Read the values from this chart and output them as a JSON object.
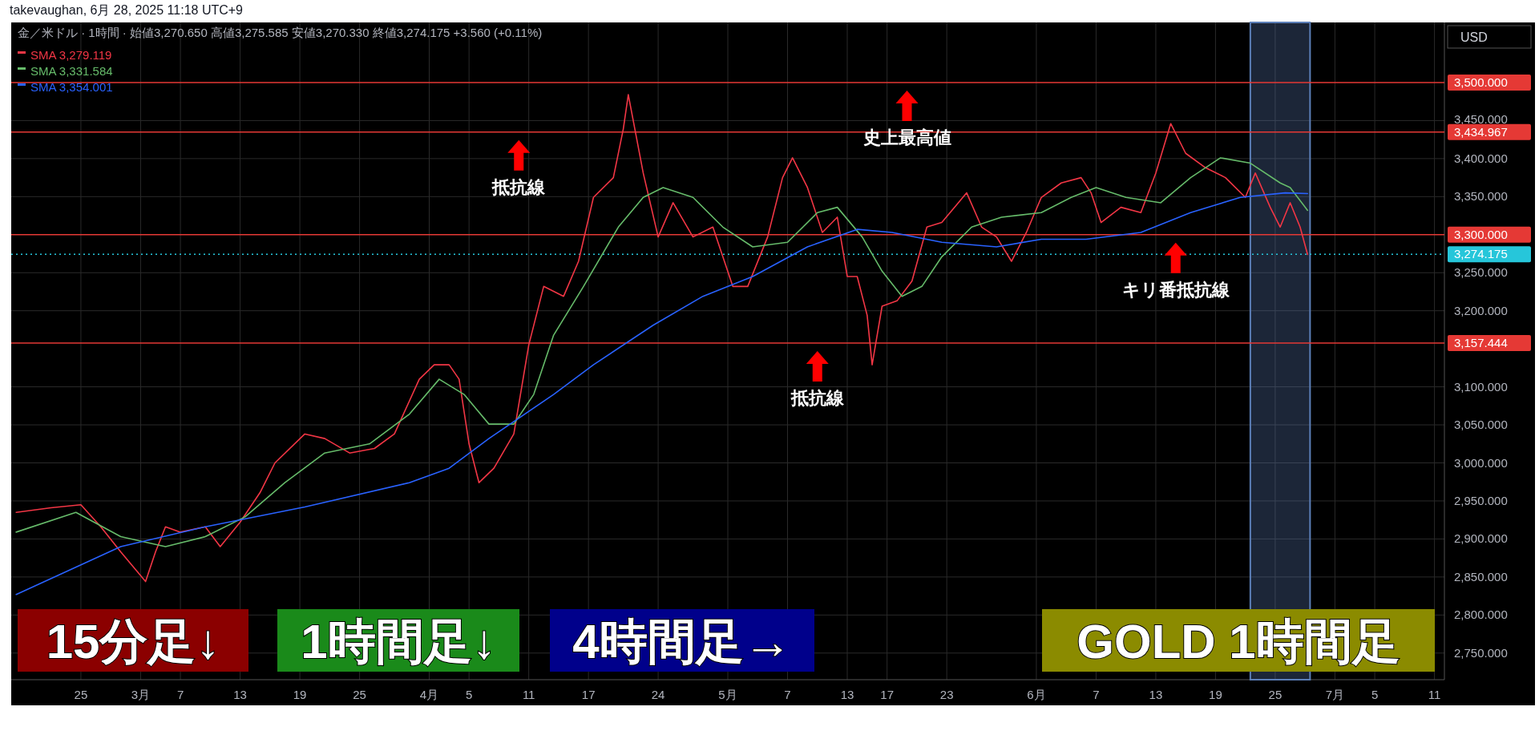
{
  "chart_data": {
    "type": "line",
    "title": "金／米ドル · 1時間 · 始値3,270.650 高値3,275.585 安値3,270.330 終値3,274.175 +3.560 (+0.11%)",
    "ylabel": "USD",
    "xlim": [
      "2025-02-18",
      "2025-07-12"
    ],
    "ylim": [
      2715,
      3579
    ],
    "xticks": [
      {
        "value": "2025-02-25",
        "label": "25"
      },
      {
        "value": "2025-03-03",
        "label": "3月"
      },
      {
        "value": "2025-03-07",
        "label": "7"
      },
      {
        "value": "2025-03-13",
        "label": "13"
      },
      {
        "value": "2025-03-19",
        "label": "19"
      },
      {
        "value": "2025-03-25",
        "label": "25"
      },
      {
        "value": "2025-04-01",
        "label": "4月"
      },
      {
        "value": "2025-04-05",
        "label": "5"
      },
      {
        "value": "2025-04-11",
        "label": "11"
      },
      {
        "value": "2025-04-17",
        "label": "17"
      },
      {
        "value": "2025-04-24",
        "label": "24"
      },
      {
        "value": "2025-05-01",
        "label": "5月"
      },
      {
        "value": "2025-05-07",
        "label": "7"
      },
      {
        "value": "2025-05-13",
        "label": "13"
      },
      {
        "value": "2025-05-17",
        "label": "17"
      },
      {
        "value": "2025-05-23",
        "label": "23"
      },
      {
        "value": "2025-06-01",
        "label": "6月"
      },
      {
        "value": "2025-06-07",
        "label": "7"
      },
      {
        "value": "2025-06-13",
        "label": "13"
      },
      {
        "value": "2025-06-19",
        "label": "19"
      },
      {
        "value": "2025-06-25",
        "label": "25"
      },
      {
        "value": "2025-07-01",
        "label": "7月"
      },
      {
        "value": "2025-07-05",
        "label": "5"
      },
      {
        "value": "2025-07-11",
        "label": "11"
      }
    ],
    "yticks": [
      {
        "value": 2750,
        "label": "2,750.000"
      },
      {
        "value": 2800,
        "label": "2,800.000"
      },
      {
        "value": 2850,
        "label": "2,850.000"
      },
      {
        "value": 2900,
        "label": "2,900.000"
      },
      {
        "value": 2950,
        "label": "2,950.000"
      },
      {
        "value": 3000,
        "label": "3,000.000"
      },
      {
        "value": 3050,
        "label": "3,050.000"
      },
      {
        "value": 3100,
        "label": "3,100.000"
      },
      {
        "value": 3200,
        "label": "3,200.000"
      },
      {
        "value": 3250,
        "label": "3,250.000"
      },
      {
        "value": 3350,
        "label": "3,350.000"
      },
      {
        "value": 3400,
        "label": "3,400.000"
      },
      {
        "value": 3450,
        "label": "3,450.000"
      }
    ],
    "grid": true,
    "legend": "top left",
    "series": [
      {
        "name": "SMA 3,279.119",
        "color": "#f23645",
        "x": [
          "2025-02-18T12:00",
          "2025-02-22",
          "2025-02-25",
          "2025-02-27",
          "2025-03-01",
          "2025-03-03T12:00",
          "2025-03-04T12:00",
          "2025-03-05T12:00",
          "2025-03-07",
          "2025-03-09T12:00",
          "2025-03-11",
          "2025-03-13",
          "2025-03-15",
          "2025-03-16T12:00",
          "2025-03-19T12:00",
          "2025-03-21T12:00",
          "2025-03-24",
          "2025-03-26T12:00",
          "2025-03-28T12:00",
          "2025-03-31",
          "2025-04-01T12:00",
          "2025-04-03",
          "2025-04-04",
          "2025-04-05",
          "2025-04-06",
          "2025-04-07T12:00",
          "2025-04-09T12:00",
          "2025-04-11",
          "2025-04-12T12:00",
          "2025-04-14T12:00",
          "2025-04-16",
          "2025-04-17T12:00",
          "2025-04-19T12:00",
          "2025-04-20T12:00",
          "2025-04-21",
          "2025-04-22T12:00",
          "2025-04-24",
          "2025-04-25T12:00",
          "2025-04-27T12:00",
          "2025-04-29T12:00",
          "2025-05-01T12:00",
          "2025-05-03",
          "2025-05-05",
          "2025-05-06T12:00",
          "2025-05-07T12:00",
          "2025-05-09",
          "2025-05-10T12:00",
          "2025-05-12",
          "2025-05-13",
          "2025-05-14",
          "2025-05-15",
          "2025-05-15T12:00",
          "2025-05-16T12:00",
          "2025-05-18",
          "2025-05-19T12:00",
          "2025-05-21",
          "2025-05-22T12:00",
          "2025-05-25",
          "2025-05-26T12:00",
          "2025-05-28",
          "2025-05-29T12:00",
          "2025-05-31",
          "2025-06-01T12:00",
          "2025-06-03T12:00",
          "2025-06-05T12:00",
          "2025-06-06T12:00",
          "2025-06-07T12:00",
          "2025-06-09T12:00",
          "2025-06-11T12:00",
          "2025-06-13",
          "2025-06-14T12:00",
          "2025-06-16",
          "2025-06-18",
          "2025-06-20",
          "2025-06-22",
          "2025-06-23",
          "2025-06-24T12:00",
          "2025-06-25T12:00",
          "2025-06-26T12:00",
          "2025-06-27T12:00",
          "2025-06-28T06:00"
        ],
        "values": [
          2935,
          2941,
          2945,
          2916,
          2883,
          2844,
          2883,
          2916,
          2909,
          2916,
          2890,
          2922,
          2961,
          3000,
          3038,
          3032,
          3013,
          3019,
          3038,
          3110,
          3129,
          3129,
          3110,
          3025,
          2974,
          2993,
          3038,
          3155,
          3232,
          3219,
          3265,
          3349,
          3375,
          3439,
          3484,
          3381,
          3297,
          3342,
          3297,
          3310,
          3232,
          3232,
          3297,
          3375,
          3401,
          3362,
          3303,
          3323,
          3245,
          3245,
          3194,
          3129,
          3206,
          3213,
          3239,
          3310,
          3316,
          3355,
          3310,
          3297,
          3265,
          3303,
          3349,
          3368,
          3375,
          3355,
          3316,
          3336,
          3329,
          3381,
          3446,
          3407,
          3388,
          3375,
          3349,
          3381,
          3336,
          3310,
          3342,
          3310,
          3274
        ]
      },
      {
        "name": "SMA 3,331.584",
        "color": "#66bb6a",
        "x": [
          "2025-02-18T12:00",
          "2025-02-24T12:00",
          "2025-03-01",
          "2025-03-05T12:00",
          "2025-03-09T12:00",
          "2025-03-13T12:00",
          "2025-03-17T12:00",
          "2025-03-21T12:00",
          "2025-03-26",
          "2025-03-30",
          "2025-04-02",
          "2025-04-04T12:00",
          "2025-04-07",
          "2025-04-09T12:00",
          "2025-04-11T12:00",
          "2025-04-13T12:00",
          "2025-04-16T12:00",
          "2025-04-20",
          "2025-04-22T12:00",
          "2025-04-24T12:00",
          "2025-04-27T12:00",
          "2025-04-30T12:00",
          "2025-05-03T12:00",
          "2025-05-07",
          "2025-05-10",
          "2025-05-12",
          "2025-05-14T12:00",
          "2025-05-16T12:00",
          "2025-05-18T12:00",
          "2025-05-20T12:00",
          "2025-05-22T12:00",
          "2025-05-25T12:00",
          "2025-05-28T12:00",
          "2025-06-01T12:00",
          "2025-06-04T12:00",
          "2025-06-07",
          "2025-06-10",
          "2025-06-13T12:00",
          "2025-06-16T12:00",
          "2025-06-19T12:00",
          "2025-06-22T12:00",
          "2025-06-25T12:00",
          "2025-06-26T12:00",
          "2025-06-28T06:00"
        ],
        "values": [
          2909,
          2935,
          2903,
          2890,
          2903,
          2929,
          2974,
          3013,
          3025,
          3064,
          3110,
          3090,
          3051,
          3051,
          3090,
          3168,
          3232,
          3310,
          3349,
          3362,
          3349,
          3310,
          3284,
          3290,
          3329,
          3336,
          3297,
          3252,
          3219,
          3232,
          3271,
          3310,
          3323,
          3329,
          3349,
          3362,
          3349,
          3342,
          3375,
          3401,
          3394,
          3368,
          3362,
          3332
        ]
      },
      {
        "name": "SMA 3,354.001",
        "color": "#2962ff",
        "x": [
          "2025-02-18T12:00",
          "2025-03-01",
          "2025-03-09T12:00",
          "2025-03-19T12:00",
          "2025-03-30",
          "2025-04-03",
          "2025-04-07",
          "2025-04-13T12:00",
          "2025-04-17T12:00",
          "2025-04-23T12:00",
          "2025-04-28T12:00",
          "2025-05-03T12:00",
          "2025-05-09",
          "2025-05-14",
          "2025-05-17T12:00",
          "2025-05-22T12:00",
          "2025-05-28",
          "2025-06-01T12:00",
          "2025-06-06",
          "2025-06-11T12:00",
          "2025-06-16T12:00",
          "2025-06-21T12:00",
          "2025-06-26",
          "2025-06-28T06:00"
        ],
        "values": [
          2827,
          2890,
          2916,
          2942,
          2974,
          2993,
          3032,
          3090,
          3129,
          3181,
          3219,
          3245,
          3284,
          3307,
          3303,
          3290,
          3284,
          3294,
          3294,
          3303,
          3329,
          3349,
          3355,
          3354
        ]
      }
    ],
    "ref_lines": [
      {
        "axis": "y",
        "value": 3500,
        "label": "3,500.000",
        "color": "#e53935",
        "line_style": "solid"
      },
      {
        "axis": "y",
        "value": 3434.967,
        "label": "3,434.967",
        "color": "#e53935",
        "line_style": "solid"
      },
      {
        "axis": "y",
        "value": 3300,
        "label": "3,300.000",
        "color": "#e53935",
        "line_style": "solid"
      },
      {
        "axis": "y",
        "value": 3157.444,
        "label": "3,157.444",
        "color": "#e53935",
        "line_style": "solid"
      },
      {
        "axis": "y",
        "value": 3274.175,
        "label": "3,274.175",
        "color": "#26c6da",
        "line_style": "dotted"
      }
    ],
    "bands": [
      {
        "axis": "x",
        "from": "2025-06-22T12:00",
        "to": "2025-06-28T12:00",
        "color": "#5c7fb8"
      }
    ],
    "annotations": [
      "takevaughan, 6月 28, 2025 11:18 UTC+9",
      "15分足↓",
      "1時間足↓",
      "4時間足→",
      "GOLD 1時間足",
      {
        "text": "抵抗線",
        "x": "2025-04-10",
        "y": 3434.967
      },
      {
        "text": "史上最高値",
        "x": "2025-05-19",
        "y": 3500
      },
      {
        "text": "抵抗線",
        "x": "2025-05-10",
        "y": 3157.444
      },
      {
        "text": "キリ番抵抗線",
        "x": "2025-06-15",
        "y": 3300
      }
    ]
  }
}
